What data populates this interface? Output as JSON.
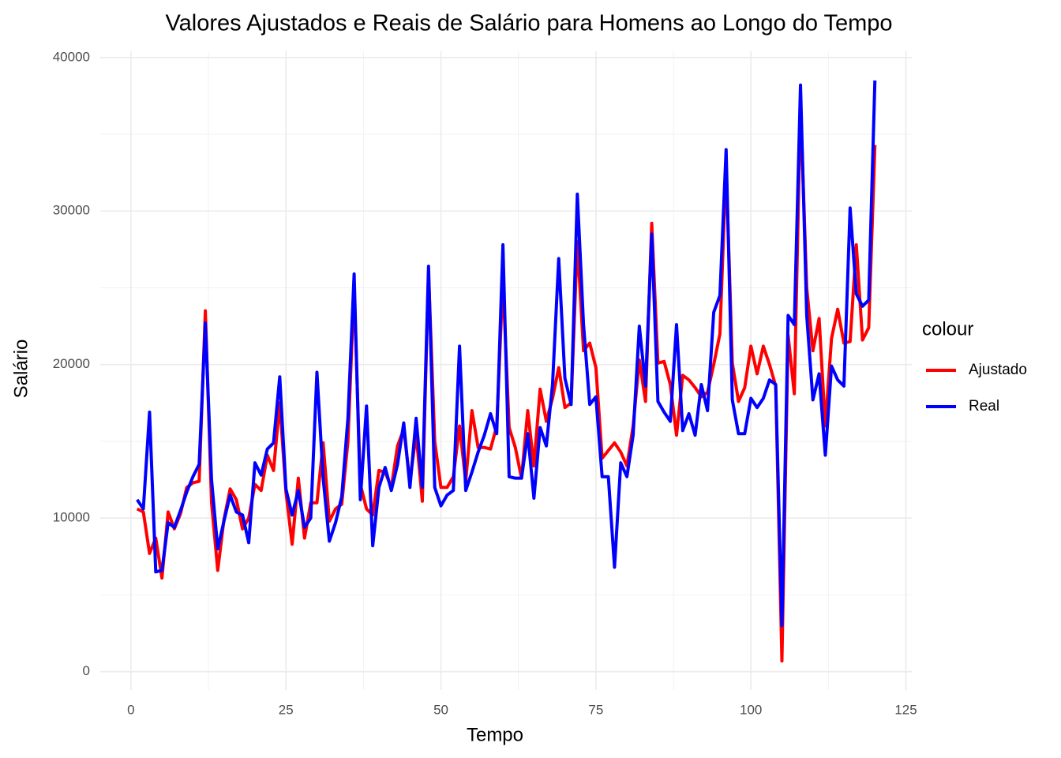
{
  "chart_data": {
    "type": "line",
    "title": "Valores Ajustados e Reais de Salário para Homens ao Longo do Tempo",
    "x_label": "Tempo",
    "y_label": "Salário",
    "legend_title": "colour",
    "legend_position": "right",
    "grid": true,
    "xlim": [
      -4.95,
      125.95
    ],
    "ylim": [
      -1200,
      40400
    ],
    "xticks": [
      0,
      25,
      50,
      75,
      100,
      125
    ],
    "yticks": [
      0,
      10000,
      20000,
      30000,
      40000
    ],
    "x": [
      1,
      2,
      3,
      4,
      5,
      6,
      7,
      8,
      9,
      10,
      11,
      12,
      13,
      14,
      15,
      16,
      17,
      18,
      19,
      20,
      21,
      22,
      23,
      24,
      25,
      26,
      27,
      28,
      29,
      30,
      31,
      32,
      33,
      34,
      35,
      36,
      37,
      38,
      39,
      40,
      41,
      42,
      43,
      44,
      45,
      46,
      47,
      48,
      49,
      50,
      51,
      52,
      53,
      54,
      55,
      56,
      57,
      58,
      59,
      60,
      61,
      62,
      63,
      64,
      65,
      66,
      67,
      68,
      69,
      70,
      71,
      72,
      73,
      74,
      75,
      76,
      77,
      78,
      79,
      80,
      81,
      82,
      83,
      84,
      85,
      86,
      87,
      88,
      89,
      90,
      91,
      92,
      93,
      94,
      95,
      96,
      97,
      98,
      99,
      100,
      101,
      102,
      103,
      104,
      105,
      106,
      107,
      108,
      109,
      110,
      111,
      112,
      113,
      114,
      115,
      116,
      117,
      118,
      119,
      120
    ],
    "series": [
      {
        "name": "Ajustado",
        "color": "#ff0000",
        "values": [
          10600,
          10400,
          7700,
          8700,
          6100,
          10400,
          9300,
          10300,
          12000,
          12300,
          12400,
          23500,
          11000,
          6600,
          9900,
          11900,
          11200,
          9300,
          10000,
          12200,
          11800,
          14100,
          13100,
          17500,
          11700,
          8300,
          12600,
          8700,
          11000,
          11000,
          14900,
          9800,
          10600,
          10900,
          15000,
          25000,
          12200,
          10600,
          10200,
          13100,
          13000,
          12000,
          14700,
          15800,
          12400,
          15500,
          11100,
          26000,
          15000,
          12000,
          12000,
          12700,
          16000,
          12400,
          17000,
          14600,
          14600,
          14500,
          16000,
          25500,
          15900,
          14600,
          12600,
          17000,
          13400,
          18400,
          16300,
          17800,
          19800,
          17200,
          17500,
          28000,
          20900,
          21400,
          19800,
          13900,
          14400,
          14900,
          14300,
          13400,
          16000,
          20300,
          17600,
          29200,
          20100,
          20200,
          18700,
          15400,
          19300,
          19000,
          18500,
          17900,
          18200,
          20000,
          22000,
          33000,
          20100,
          17600,
          18500,
          21200,
          19400,
          21200,
          20000,
          18600,
          700,
          21900,
          18100,
          37000,
          25000,
          20900,
          23000,
          16000,
          21700,
          23600,
          21400,
          21500,
          27800,
          21600,
          22400,
          34300
        ]
      },
      {
        "name": "Real",
        "color": "#0000ff",
        "values": [
          11200,
          10600,
          16900,
          6500,
          6600,
          9700,
          9400,
          10500,
          11700,
          12700,
          13500,
          22700,
          12500,
          8000,
          9800,
          11500,
          10400,
          10200,
          8400,
          13600,
          12800,
          14500,
          14900,
          19200,
          11900,
          10200,
          11800,
          9400,
          10000,
          19500,
          12600,
          8500,
          9700,
          11400,
          16500,
          25900,
          11200,
          17300,
          8200,
          12000,
          13300,
          11800,
          13500,
          16200,
          12000,
          16500,
          12000,
          26400,
          12000,
          10800,
          11500,
          11800,
          21200,
          11800,
          13000,
          14300,
          15400,
          16800,
          15500,
          27800,
          12700,
          12600,
          12600,
          15500,
          11300,
          15900,
          14700,
          18700,
          26900,
          19100,
          17400,
          31100,
          22600,
          17400,
          17900,
          12700,
          12700,
          6800,
          13600,
          12700,
          15400,
          22500,
          18600,
          28500,
          17600,
          16900,
          16300,
          22600,
          15700,
          16800,
          15400,
          18700,
          17000,
          23400,
          24500,
          34000,
          17700,
          15500,
          15500,
          17800,
          17200,
          17800,
          19000,
          18700,
          3000,
          23200,
          22600,
          38200,
          23200,
          17700,
          19400,
          14100,
          19900,
          19000,
          18600,
          30200,
          24600,
          23800,
          24200,
          38500
        ]
      }
    ]
  }
}
